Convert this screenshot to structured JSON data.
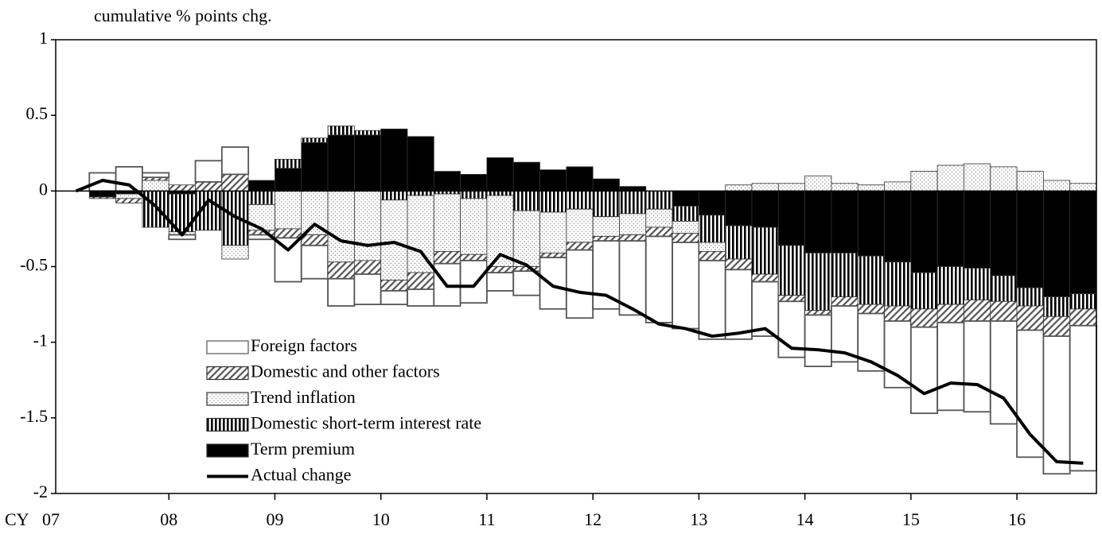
{
  "chart_data": {
    "type": "bar",
    "y_label": "cumulative % points chg.",
    "x_label": "CY",
    "categories": [
      "07",
      null,
      null,
      null,
      "08",
      null,
      null,
      null,
      "09",
      null,
      null,
      null,
      "10",
      null,
      null,
      null,
      "11",
      null,
      null,
      null,
      "12",
      null,
      null,
      null,
      "13",
      null,
      null,
      null,
      "14",
      null,
      null,
      null,
      "15",
      null,
      null,
      null,
      "16",
      null,
      null
    ],
    "series": [
      {
        "name": "Foreign factors",
        "color": "#ffffff",
        "pattern": "none",
        "values": [
          0,
          0.12,
          0.16,
          0.03,
          -0.03,
          0.14,
          0.18,
          -0.03,
          -0.29,
          -0.22,
          -0.18,
          -0.2,
          -0.09,
          -0.11,
          -0.28,
          -0.28,
          -0.12,
          -0.16,
          -0.34,
          -0.45,
          -0.45,
          -0.49,
          -0.57,
          -0.57,
          -0.52,
          -0.46,
          -0.36,
          -0.37,
          -0.34,
          -0.37,
          -0.38,
          -0.44,
          -0.57,
          -0.58,
          -0.6,
          -0.68,
          -0.84,
          -0.91,
          -0.96
        ]
      },
      {
        "name": "Domestic and other factors",
        "color": "#555555",
        "pattern": "diagonal",
        "values": [
          0,
          -0.01,
          -0.03,
          0.02,
          0.04,
          0.06,
          0.11,
          -0.03,
          -0.06,
          -0.07,
          -0.11,
          -0.09,
          -0.07,
          -0.11,
          -0.08,
          -0.04,
          -0.04,
          -0.03,
          -0.03,
          -0.05,
          -0.03,
          -0.04,
          -0.06,
          -0.06,
          -0.06,
          -0.07,
          -0.05,
          -0.04,
          -0.03,
          -0.06,
          -0.06,
          -0.1,
          -0.12,
          -0.12,
          -0.14,
          -0.13,
          -0.16,
          -0.13,
          -0.11
        ]
      },
      {
        "name": "Trend inflation",
        "color": "#888888",
        "pattern": "dots",
        "values": [
          0,
          0,
          -0.03,
          0.07,
          -0.02,
          0,
          -0.09,
          -0.17,
          -0.25,
          -0.29,
          -0.47,
          -0.46,
          -0.53,
          -0.51,
          -0.38,
          -0.37,
          -0.47,
          -0.37,
          -0.27,
          -0.22,
          -0.13,
          -0.14,
          -0.12,
          -0.08,
          -0.06,
          0.04,
          0.05,
          0.05,
          0.1,
          0.05,
          0.04,
          0.06,
          0.13,
          0.17,
          0.18,
          0.16,
          0.13,
          0.07,
          0.05
        ]
      },
      {
        "name": "Domestic short-term interest rate",
        "color": "#000000",
        "pattern": "vertical",
        "values": [
          0,
          0,
          0,
          -0.24,
          -0.25,
          -0.26,
          -0.36,
          -0.09,
          0.06,
          0.03,
          0.06,
          0.03,
          -0.06,
          -0.03,
          -0.02,
          -0.05,
          -0.03,
          -0.13,
          -0.14,
          -0.12,
          -0.17,
          -0.15,
          -0.12,
          -0.1,
          -0.18,
          -0.22,
          -0.31,
          -0.33,
          -0.38,
          -0.29,
          -0.32,
          -0.29,
          -0.24,
          -0.25,
          -0.21,
          -0.17,
          -0.12,
          -0.13,
          -0.1
        ]
      },
      {
        "name": "Term premium",
        "color": "#000000",
        "pattern": "solid",
        "values": [
          0,
          -0.04,
          -0.02,
          0,
          -0.02,
          0,
          0,
          0.07,
          0.15,
          0.32,
          0.37,
          0.37,
          0.41,
          0.36,
          0.13,
          0.11,
          0.22,
          0.19,
          0.14,
          0.16,
          0.08,
          0.03,
          0,
          -0.1,
          -0.16,
          -0.23,
          -0.24,
          -0.36,
          -0.41,
          -0.41,
          -0.43,
          -0.47,
          -0.54,
          -0.5,
          -0.51,
          -0.56,
          -0.64,
          -0.7,
          -0.68
        ]
      },
      {
        "name": "Actual change",
        "color": "#000000",
        "kind": "line",
        "values": [
          0,
          0.07,
          0.04,
          -0.1,
          -0.29,
          -0.06,
          -0.17,
          -0.25,
          -0.39,
          -0.22,
          -0.33,
          -0.36,
          -0.34,
          -0.4,
          -0.63,
          -0.63,
          -0.42,
          -0.49,
          -0.63,
          -0.67,
          -0.69,
          -0.78,
          -0.88,
          -0.91,
          -0.96,
          -0.94,
          -0.91,
          -1.04,
          -1.05,
          -1.07,
          -1.13,
          -1.22,
          -1.34,
          -1.27,
          -1.28,
          -1.37,
          -1.61,
          -1.79,
          -1.8
        ]
      }
    ],
    "ylim": [
      -2,
      1
    ],
    "yticks": [
      1,
      0.5,
      0,
      -0.5,
      -1,
      -1.5,
      -2
    ]
  }
}
